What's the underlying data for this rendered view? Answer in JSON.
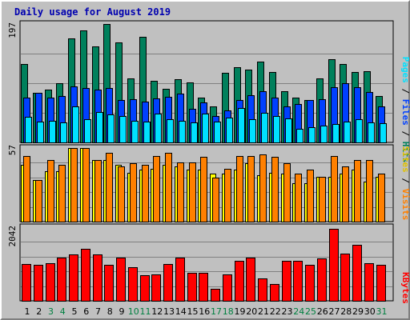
{
  "title": "Daily usage for August 2019",
  "panels": {
    "top": {
      "max_label": "197",
      "legend": [
        "Pages",
        "Files",
        "Hits"
      ],
      "separator": " / "
    },
    "middle": {
      "max_label": "57",
      "legend": [
        "Sites",
        "Visits"
      ],
      "separator": " / "
    },
    "bottom": {
      "max_label": "2042",
      "legend": [
        "KBytes"
      ]
    }
  },
  "colors": {
    "hits": "#00805c",
    "files": "#0040ff",
    "pages": "#00e0ff",
    "visits": "#ff8000",
    "sites": "#ffff00",
    "kbytes": "#ff0000",
    "weekday": "#000000",
    "weekend": "#008040"
  },
  "chart_data": [
    {
      "type": "bar",
      "name": "daily-traffic",
      "categories": [
        "1",
        "2",
        "3",
        "4",
        "5",
        "6",
        "7",
        "8",
        "9",
        "10",
        "11",
        "12",
        "13",
        "14",
        "15",
        "16",
        "17",
        "18",
        "19",
        "20",
        "21",
        "22",
        "23",
        "24",
        "25",
        "26",
        "27",
        "28",
        "29",
        "30",
        "31"
      ],
      "weekend_days": [
        "3",
        "4",
        "10",
        "11",
        "17",
        "18",
        "24",
        "25",
        "31"
      ],
      "series": [
        {
          "name": "Hits",
          "values": [
            131,
            82,
            88,
            99,
            173,
            187,
            160,
            197,
            167,
            106,
            176,
            103,
            89,
            105,
            100,
            75,
            60,
            116,
            125,
            121,
            135,
            117,
            85,
            74,
            70,
            106,
            139,
            130,
            117,
            118,
            77
          ]
        },
        {
          "name": "Files",
          "values": [
            75,
            82,
            74,
            77,
            93,
            91,
            88,
            91,
            71,
            72,
            68,
            73,
            76,
            81,
            56,
            66,
            44,
            53,
            70,
            79,
            85,
            75,
            60,
            64,
            70,
            72,
            92,
            98,
            92,
            84,
            60
          ]
        },
        {
          "name": "Pages",
          "values": [
            42,
            35,
            36,
            33,
            60,
            38,
            51,
            47,
            44,
            36,
            34,
            48,
            39,
            36,
            33,
            48,
            34,
            41,
            57,
            39,
            49,
            44,
            40,
            22,
            25,
            28,
            31,
            34,
            38,
            33,
            32
          ]
        }
      ],
      "ylim": [
        0,
        197
      ]
    },
    {
      "type": "bar",
      "name": "sites-visits",
      "categories": [
        "1",
        "2",
        "3",
        "4",
        "5",
        "6",
        "7",
        "8",
        "9",
        "10",
        "11",
        "12",
        "13",
        "14",
        "15",
        "16",
        "17",
        "18",
        "19",
        "20",
        "21",
        "22",
        "23",
        "24",
        "25",
        "26",
        "27",
        "28",
        "29",
        "30",
        "31"
      ],
      "series": [
        {
          "name": "Sites",
          "values": [
            44,
            32,
            39,
            39,
            57,
            57,
            48,
            48,
            44,
            38,
            40,
            41,
            44,
            43,
            40,
            40,
            37,
            37,
            40,
            45,
            36,
            38,
            37,
            30,
            30,
            35,
            35,
            37,
            40,
            31,
            35
          ]
        },
        {
          "name": "Visits",
          "values": [
            51,
            32,
            48,
            44,
            57,
            57,
            48,
            53,
            43,
            45,
            44,
            51,
            53,
            46,
            46,
            50,
            34,
            41,
            51,
            51,
            52,
            50,
            45,
            37,
            40,
            35,
            51,
            43,
            48,
            48,
            37
          ]
        }
      ],
      "ylim": [
        0,
        57
      ]
    },
    {
      "type": "bar",
      "name": "kbytes",
      "categories": [
        "1",
        "2",
        "3",
        "4",
        "5",
        "6",
        "7",
        "8",
        "9",
        "10",
        "11",
        "12",
        "13",
        "14",
        "15",
        "16",
        "17",
        "18",
        "19",
        "20",
        "21",
        "22",
        "23",
        "24",
        "25",
        "26",
        "27",
        "28",
        "29",
        "30",
        "31"
      ],
      "series": [
        {
          "name": "KBytes",
          "values": [
            1035,
            1025,
            1065,
            1220,
            1320,
            1465,
            1315,
            1030,
            1225,
            950,
            725,
            755,
            1045,
            1235,
            805,
            785,
            335,
            745,
            1125,
            1235,
            640,
            480,
            1130,
            1130,
            1020,
            1200,
            2042,
            1340,
            1595,
            1060,
            1020
          ]
        }
      ],
      "ylim": [
        0,
        2042
      ]
    }
  ]
}
